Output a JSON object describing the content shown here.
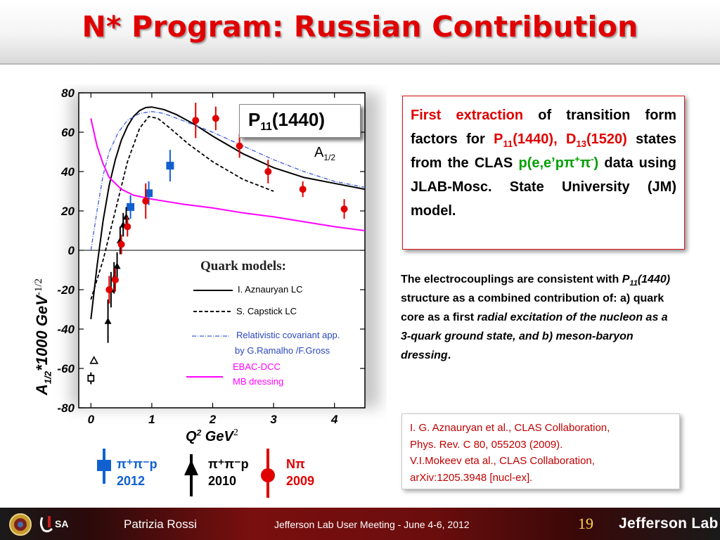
{
  "slide": {
    "title": "N* Program: Russian Contribution"
  },
  "plot": {
    "state_box": {
      "main": "P",
      "sub": "11",
      "rest": "(1440)"
    },
    "amp_label": {
      "main": "A",
      "sub": "1/2"
    },
    "ylabel": {
      "main": "A",
      "sub": "1/2",
      "rest": "*1000 GeV",
      "unit_sup": "-1/2"
    },
    "xlabel": {
      "main": "Q",
      "sup": "2",
      "rest": " GeV",
      "unit_sup": "2"
    },
    "quark_models_title": "Quark models:",
    "models": [
      {
        "label": "I.  Aznauryan LC",
        "color": "#000000",
        "style": "solid"
      },
      {
        "label": "S. Capstick LC",
        "color": "#000000",
        "style": "dashed"
      },
      {
        "label": "Relativistic  covariant app.",
        "label2": "by G.Ramalho /F.Gross",
        "color": "#3f5fd8",
        "style": "dashdot"
      },
      {
        "label": "EBAC-DCC",
        "label2": "MB dressing",
        "color": "#ff00ff",
        "style": "solid"
      }
    ],
    "datasets": [
      {
        "label_line1": "π⁺π⁻p",
        "label_line2": "2012",
        "color": "#1060d0",
        "marker": "square"
      },
      {
        "label_line1": "π⁺π⁻p",
        "label_line2": "2010",
        "color": "#000000",
        "marker": "triangle"
      },
      {
        "label_line1": "Nπ",
        "label_line2": "2009",
        "color": "#e00000",
        "marker": "circle"
      }
    ],
    "colors": {
      "red": "#e00000",
      "blue": "#1060d0",
      "black": "#000000",
      "magenta": "#ff00ff",
      "dashdot_blue": "#3f5fd8"
    }
  },
  "chart_data": {
    "type": "scatter",
    "title": "",
    "xlabel": "Q2 GeV2",
    "ylabel": "A1/2*1000 GeV-1/2",
    "xlim": [
      -0.2,
      4.5
    ],
    "ylim": [
      -80,
      80
    ],
    "xticks": [
      0,
      1,
      2,
      3,
      4
    ],
    "yticks": [
      80,
      60,
      40,
      20,
      0,
      -20,
      -40,
      -60,
      -80
    ],
    "series": [
      {
        "name": "π⁺π⁻p 2012",
        "marker": "square",
        "color": "#1060d0",
        "points": [
          [
            0.65,
            22,
            6
          ],
          [
            0.95,
            29,
            6
          ],
          [
            1.3,
            43,
            8
          ]
        ]
      },
      {
        "name": "π⁺π⁻p 2010",
        "marker": "triangle",
        "color": "#000000",
        "points": [
          [
            0.28,
            -36,
            11
          ],
          [
            0.33,
            -20,
            9
          ],
          [
            0.38,
            -14,
            8
          ],
          [
            0.43,
            -8,
            7
          ],
          [
            0.48,
            5,
            7
          ],
          [
            0.53,
            13,
            6
          ],
          [
            0.58,
            17,
            5
          ],
          [
            0.05,
            -56,
            0
          ]
        ]
      },
      {
        "name": "Nπ 2009",
        "marker": "circle",
        "color": "#e00000",
        "points": [
          [
            0.3,
            -20,
            7
          ],
          [
            0.4,
            -15,
            6
          ],
          [
            0.5,
            3,
            5
          ],
          [
            0.6,
            12,
            5
          ],
          [
            0.9,
            25,
            9
          ],
          [
            1.72,
            66,
            9
          ],
          [
            2.05,
            67,
            6
          ],
          [
            2.44,
            53,
            6
          ],
          [
            2.91,
            40,
            6
          ],
          [
            3.48,
            31,
            4
          ],
          [
            4.16,
            21,
            5
          ]
        ]
      },
      {
        "name": "open square",
        "marker": "open-square",
        "color": "#000000",
        "points": [
          [
            0.0,
            -65,
            3
          ]
        ]
      }
    ],
    "curves": [
      {
        "name": "I.  Aznauryan LC",
        "style": "solid",
        "color": "#000000",
        "x": [
          0.0,
          0.1,
          0.2,
          0.3,
          0.4,
          0.5,
          0.6,
          0.7,
          0.8,
          0.9,
          1.0,
          1.2,
          1.4,
          1.7,
          2.0,
          2.5,
          3.0,
          3.5,
          4.0,
          4.5
        ],
        "y": [
          -35,
          -8,
          15,
          33,
          46,
          56,
          63,
          68,
          71,
          72.5,
          72.8,
          71.5,
          69,
          64,
          58,
          49,
          42,
          37,
          34,
          31
        ]
      },
      {
        "name": "S. Capstick LC",
        "style": "dashed",
        "color": "#000000",
        "x": [
          0.0,
          0.2,
          0.4,
          0.6,
          0.8,
          0.95,
          1.1,
          1.3,
          1.6,
          2.0,
          2.5,
          3.0
        ],
        "y": [
          -25,
          -5,
          20,
          45,
          62,
          68,
          67,
          62,
          54,
          45,
          36,
          30
        ]
      },
      {
        "name": "Relativistic covariant app.",
        "style": "dashdot",
        "color": "#3f5fd8",
        "x": [
          0.0,
          0.1,
          0.2,
          0.3,
          0.45,
          0.6,
          0.8,
          1.0,
          1.2,
          1.5,
          2.0,
          2.5,
          3.0,
          3.5,
          4.0,
          4.5
        ],
        "y": [
          0,
          20,
          38,
          50,
          60,
          66,
          69.5,
          70.5,
          69.5,
          66,
          60,
          53,
          46,
          40,
          35,
          32
        ]
      },
      {
        "name": "EBAC-DCC MB dressing",
        "style": "solid",
        "color": "#ff00ff",
        "x": [
          0.0,
          0.05,
          0.1,
          0.2,
          0.3,
          0.5,
          0.7,
          1.0,
          1.5,
          2.0,
          2.5,
          3.0,
          3.5,
          4.0,
          4.5
        ],
        "y": [
          67,
          60,
          53,
          44,
          37,
          31,
          28,
          26,
          23.5,
          21.5,
          19,
          17,
          14.5,
          12,
          10
        ]
      }
    ]
  },
  "first_box": {
    "red_lead": "First  extraction",
    "t1": "  of  transition form  factors  for  ",
    "p11_main": "P",
    "p11_sub": "11",
    "p11_rest": "(1440),",
    "d13_main": "D",
    "d13_sub": "13",
    "d13_rest": "(1520)",
    "t2": "  states from the CLAS",
    "reaction": "p(e,e’pπ",
    "reaction_sup1": "+",
    "reaction_mid": "π",
    "reaction_sup2": "-",
    "reaction_end": ")",
    "t3": "  data  using  JLAB-Mosc.  State  University  (JM) model."
  },
  "consistency": {
    "t1": "The electrocouplings  are consistent with ",
    "p_main": "P",
    "p_sub": "11",
    "p_rest": "(1440)",
    "t2": " structure as a combined contribution of: a) quark core as  a first ",
    "italic1": "radial excitation of the nucleon as a 3-quark ground state, and b) meson-baryon  dressing",
    "end": "."
  },
  "references": [
    "I. G. Aznauryan et al., CLAS Collaboration,",
    "Phys. Rev. C 80, 055203 (2009).",
    "V.I.Mokeev eta al., CLAS Collaboration,",
    "arXiv:1205.3948 [nucl-ex]."
  ],
  "footer": {
    "speaker": "Patrizia Rossi",
    "meeting": "Jefferson Lab User Meeting  - June 4-6, 2012",
    "page": "19",
    "lab": "Jefferson Lab"
  }
}
